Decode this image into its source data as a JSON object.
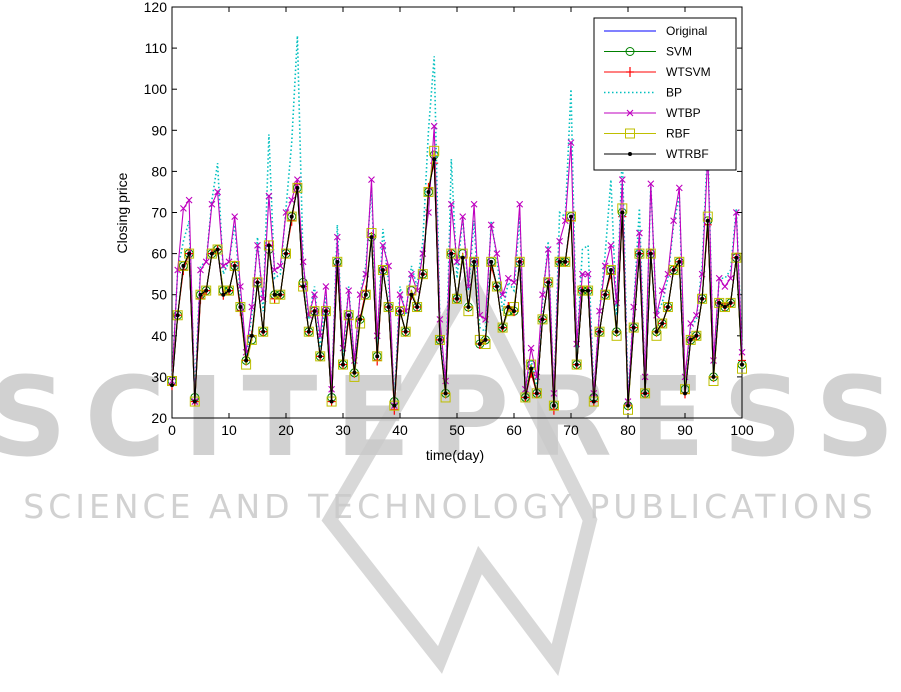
{
  "watermark": {
    "big": "SCITEPRESS",
    "small": "SCIENCE AND TECHNOLOGY PUBLICATIONS",
    "color": "#c8c8c8"
  },
  "chart_data": {
    "type": "line",
    "xlabel": "time(day)",
    "ylabel": "Closing price",
    "xlim": [
      0,
      100
    ],
    "ylim": [
      20,
      120
    ],
    "xticks": [
      0,
      10,
      20,
      30,
      40,
      50,
      60,
      70,
      80,
      90,
      100
    ],
    "yticks": [
      20,
      30,
      40,
      50,
      60,
      70,
      80,
      90,
      100,
      110,
      120
    ],
    "grid": false,
    "legend_position": "top-right",
    "x": [
      0,
      1,
      2,
      3,
      4,
      5,
      6,
      7,
      8,
      9,
      10,
      11,
      12,
      13,
      14,
      15,
      16,
      17,
      18,
      19,
      20,
      21,
      22,
      23,
      24,
      25,
      26,
      27,
      28,
      29,
      30,
      31,
      32,
      33,
      34,
      35,
      36,
      37,
      38,
      39,
      40,
      41,
      42,
      43,
      44,
      45,
      46,
      47,
      48,
      49,
      50,
      51,
      52,
      53,
      54,
      55,
      56,
      57,
      58,
      59,
      60,
      61,
      62,
      63,
      64,
      65,
      66,
      67,
      68,
      69,
      70,
      71,
      72,
      73,
      74,
      75,
      76,
      77,
      78,
      79,
      80,
      81,
      82,
      83,
      84,
      85,
      86,
      87,
      88,
      89,
      90,
      91,
      92,
      93,
      94,
      95,
      96,
      97,
      98,
      99,
      100
    ],
    "series": [
      {
        "name": "Original",
        "color": "#0000ff",
        "style": "solid",
        "marker": "none",
        "values": [
          28,
          45,
          57,
          60,
          24,
          50,
          51,
          60,
          61,
          50,
          51,
          57,
          47,
          34,
          40,
          53,
          41,
          62,
          50,
          50,
          60,
          69,
          76,
          52,
          41,
          46,
          35,
          46,
          24,
          58,
          33,
          45,
          31,
          44,
          50,
          64,
          35,
          56,
          47,
          23,
          46,
          41,
          50,
          47,
          55,
          75,
          83,
          39,
          26,
          60,
          49,
          59,
          47,
          58,
          38,
          39,
          58,
          52,
          42,
          47,
          46,
          58,
          25,
          32,
          26,
          44,
          53,
          23,
          58,
          58,
          69,
          33,
          51,
          51,
          24,
          41,
          50,
          56,
          41,
          70,
          23,
          42,
          60,
          26,
          60,
          41,
          43,
          47,
          56,
          58,
          26,
          39,
          40,
          49,
          68,
          30,
          48,
          47,
          48,
          59,
          33
        ]
      },
      {
        "name": "SVM",
        "color": "#008000",
        "style": "solid",
        "marker": "circle",
        "values": [
          29,
          45,
          57,
          60,
          25,
          50,
          51,
          60,
          61,
          51,
          51,
          57,
          47,
          34,
          39,
          53,
          41,
          61,
          50,
          50,
          60,
          69,
          76,
          53,
          41,
          46,
          35,
          46,
          25,
          58,
          33,
          45,
          31,
          44,
          50,
          64,
          35,
          56,
          47,
          24,
          46,
          41,
          51,
          47,
          55,
          75,
          84,
          39,
          26,
          60,
          49,
          60,
          47,
          58,
          38,
          39,
          58,
          52,
          42,
          46,
          46,
          58,
          25,
          33,
          26,
          44,
          53,
          23,
          58,
          58,
          69,
          33,
          51,
          51,
          25,
          41,
          50,
          56,
          41,
          70,
          23,
          42,
          60,
          26,
          60,
          41,
          43,
          47,
          56,
          58,
          27,
          39,
          40,
          49,
          68,
          30,
          48,
          47,
          48,
          59,
          33
        ]
      },
      {
        "name": "WTSVM",
        "color": "#ff0000",
        "style": "solid",
        "marker": "plus",
        "values": [
          28,
          45,
          56,
          60,
          24,
          49,
          51,
          60,
          61,
          50,
          51,
          57,
          46,
          34,
          40,
          53,
          41,
          62,
          49,
          50,
          60,
          68,
          77,
          52,
          41,
          46,
          35,
          46,
          24,
          57,
          33,
          44,
          31,
          44,
          51,
          64,
          34,
          56,
          47,
          22,
          46,
          41,
          50,
          47,
          55,
          76,
          82,
          39,
          26,
          60,
          49,
          59,
          47,
          58,
          38,
          39,
          57,
          52,
          42,
          47,
          46,
          58,
          25,
          31,
          26,
          44,
          53,
          22,
          58,
          58,
          68,
          33,
          51,
          51,
          24,
          41,
          50,
          55,
          41,
          69,
          23,
          42,
          60,
          26,
          60,
          41,
          43,
          47,
          56,
          58,
          26,
          39,
          40,
          49,
          67,
          30,
          48,
          47,
          48,
          59,
          34
        ]
      },
      {
        "name": "BP",
        "color": "#00bfbf",
        "style": "dotted",
        "marker": "none",
        "values": [
          29,
          56,
          63,
          68,
          26,
          57,
          58,
          73,
          82,
          55,
          58,
          67,
          50,
          35,
          45,
          64,
          46,
          89,
          54,
          55,
          71,
          87,
          113,
          58,
          44,
          52,
          37,
          50,
          26,
          67,
          35,
          52,
          33,
          50,
          57,
          76,
          38,
          66,
          53,
          24,
          52,
          45,
          57,
          52,
          63,
          90,
          108,
          43,
          27,
          83,
          54,
          69,
          51,
          68,
          42,
          41,
          68,
          59,
          46,
          53,
          51,
          69,
          27,
          34,
          28,
          48,
          63,
          25,
          70,
          69,
          100,
          36,
          61,
          62,
          26,
          46,
          60,
          78,
          45,
          85,
          25,
          47,
          71,
          28,
          77,
          45,
          48,
          54,
          67,
          74,
          28,
          42,
          44,
          57,
          87,
          32,
          54,
          54,
          56,
          71,
          36
        ]
      },
      {
        "name": "WTBP",
        "color": "#bf00bf",
        "style": "solid",
        "marker": "cross",
        "values": [
          29,
          56,
          71,
          73,
          24,
          56,
          58,
          72,
          75,
          57,
          58,
          69,
          52,
          36,
          47,
          62,
          49,
          74,
          56,
          57,
          70,
          73,
          78,
          58,
          45,
          50,
          40,
          52,
          27,
          64,
          37,
          51,
          34,
          50,
          55,
          78,
          40,
          62,
          57,
          23,
          50,
          46,
          55,
          51,
          60,
          70,
          91,
          44,
          29,
          72,
          58,
          69,
          52,
          72,
          45,
          44,
          67,
          60,
          50,
          54,
          53,
          72,
          27,
          37,
          30,
          50,
          61,
          26,
          63,
          68,
          87,
          38,
          55,
          55,
          26,
          46,
          57,
          62,
          48,
          78,
          24,
          47,
          65,
          30,
          77,
          45,
          51,
          55,
          68,
          76,
          30,
          43,
          45,
          55,
          84,
          34,
          54,
          52,
          54,
          70,
          36
        ]
      },
      {
        "name": "RBF",
        "color": "#bfbf00",
        "style": "solid",
        "marker": "square",
        "values": [
          29,
          45,
          57,
          60,
          24,
          50,
          51,
          60,
          61,
          51,
          51,
          57,
          47,
          33,
          39,
          53,
          41,
          62,
          49,
          50,
          60,
          69,
          76,
          52,
          41,
          46,
          35,
          46,
          24,
          58,
          33,
          45,
          30,
          43,
          50,
          65,
          35,
          56,
          47,
          23,
          46,
          41,
          51,
          47,
          55,
          75,
          85,
          39,
          25,
          60,
          49,
          60,
          46,
          58,
          39,
          38,
          58,
          52,
          42,
          46,
          47,
          58,
          25,
          33,
          26,
          44,
          53,
          23,
          58,
          58,
          69,
          33,
          51,
          51,
          24,
          41,
          50,
          56,
          40,
          71,
          22,
          42,
          60,
          26,
          60,
          40,
          43,
          47,
          56,
          58,
          27,
          39,
          40,
          49,
          69,
          29,
          48,
          47,
          48,
          59,
          32
        ]
      },
      {
        "name": "WTRBF",
        "color": "#000000",
        "style": "solid",
        "marker": "dot",
        "values": [
          28,
          45,
          57,
          60,
          24,
          50,
          51,
          60,
          61,
          50,
          51,
          57,
          47,
          34,
          40,
          53,
          41,
          62,
          50,
          50,
          60,
          69,
          76,
          52,
          41,
          46,
          35,
          46,
          24,
          58,
          33,
          45,
          31,
          44,
          50,
          64,
          35,
          56,
          47,
          23,
          46,
          41,
          50,
          47,
          55,
          75,
          83,
          39,
          26,
          60,
          49,
          59,
          47,
          58,
          38,
          39,
          58,
          52,
          42,
          47,
          46,
          58,
          25,
          32,
          26,
          44,
          53,
          23,
          58,
          58,
          69,
          33,
          51,
          51,
          24,
          41,
          50,
          56,
          41,
          70,
          23,
          42,
          60,
          26,
          60,
          41,
          43,
          47,
          56,
          58,
          26,
          39,
          40,
          49,
          68,
          30,
          48,
          47,
          48,
          59,
          33
        ]
      }
    ]
  }
}
